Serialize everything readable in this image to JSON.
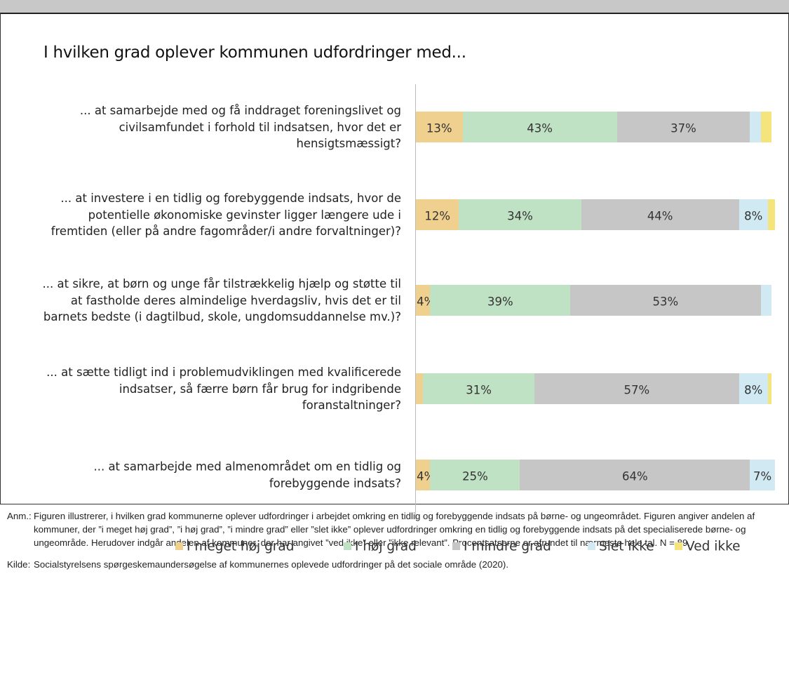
{
  "chart_data": {
    "type": "stacked-bar-horizontal",
    "title": "I hvilken grad oplever kommunen udfordringer med...",
    "categories": [
      "... at samarbejde med og få inddraget foreningslivet og civilsamfundet i forhold til indsatsen, hvor det er hensigtsmæssigt?",
      "... at investere i en tidlig og forebyggende indsats, hvor de potentielle økonomiske gevinster ligger længere ude i fremtiden (eller på andre fagområder/i andre forvaltninger)?",
      "... at sikre, at børn og unge får tilstrækkelig hjælp og støtte til at fastholde deres almindelige hverdagsliv, hvis det er til barnets bedste (i dagtilbud, skole, ungdomsuddannelse mv.)?",
      "... at sætte tidligt ind i problemudviklingen med kvalificerede indsatser, så færre børn får brug for indgribende foranstaltninger?",
      "... at samarbejde med almenområdet om en tidlig og forebyggende indsats?"
    ],
    "xlim": [
      0,
      100
    ],
    "series": [
      {
        "name": "I meget høj grad",
        "color": "#efd08e",
        "values": [
          13,
          12,
          4,
          2,
          4
        ],
        "value_labels": [
          "13%",
          "12%",
          "4%",
          null,
          "4%"
        ]
      },
      {
        "name": "I høj grad",
        "color": "#bfe1c4",
        "values": [
          43,
          34,
          39,
          31,
          25
        ],
        "value_labels": [
          "43%",
          "34%",
          "39%",
          "31%",
          "25%"
        ]
      },
      {
        "name": "I mindre grad",
        "color": "#c6c6c6",
        "values": [
          37,
          44,
          53,
          57,
          64
        ],
        "value_labels": [
          "37%",
          "44%",
          "53%",
          "57%",
          "64%"
        ]
      },
      {
        "name": "Slet ikke",
        "color": "#d0e9f3",
        "values": [
          3,
          8,
          3,
          8,
          7
        ],
        "value_labels": [
          null,
          "8%",
          null,
          "8%",
          "7%"
        ]
      },
      {
        "name": "Ved ikke",
        "color": "#f5e37c",
        "values": [
          3,
          2,
          0,
          1,
          0
        ],
        "value_labels": [
          null,
          null,
          null,
          null,
          null
        ]
      }
    ]
  },
  "notes": {
    "anm_label": "Anm.:",
    "anm_text": "Figuren illustrerer, i hvilken grad kommunerne oplever udfordringer i arbejdet omkring en tidlig og forebyggende indsats på børne- og ungeområdet. Figuren angiver andelen af kommuner, der ”i meget høj grad”, ”i høj grad”, ”i mindre grad” eller ”slet ikke” oplever udfordringer omkring en tidlig og forebyggende indsats på det specialiserede børne- og ungeområde. Herudover indgår andelen af kommuner, der har angivet ”ved ikke” eller ”ikke relevant”. Procentsatserne er afrundet til nærmeste hele tal. N = 89.",
    "kilde_label": "Kilde:",
    "kilde_text": "Socialstyrelsens spørgeskemaundersøgelse af kommunernes oplevede udfordringer på det sociale område (2020)."
  }
}
